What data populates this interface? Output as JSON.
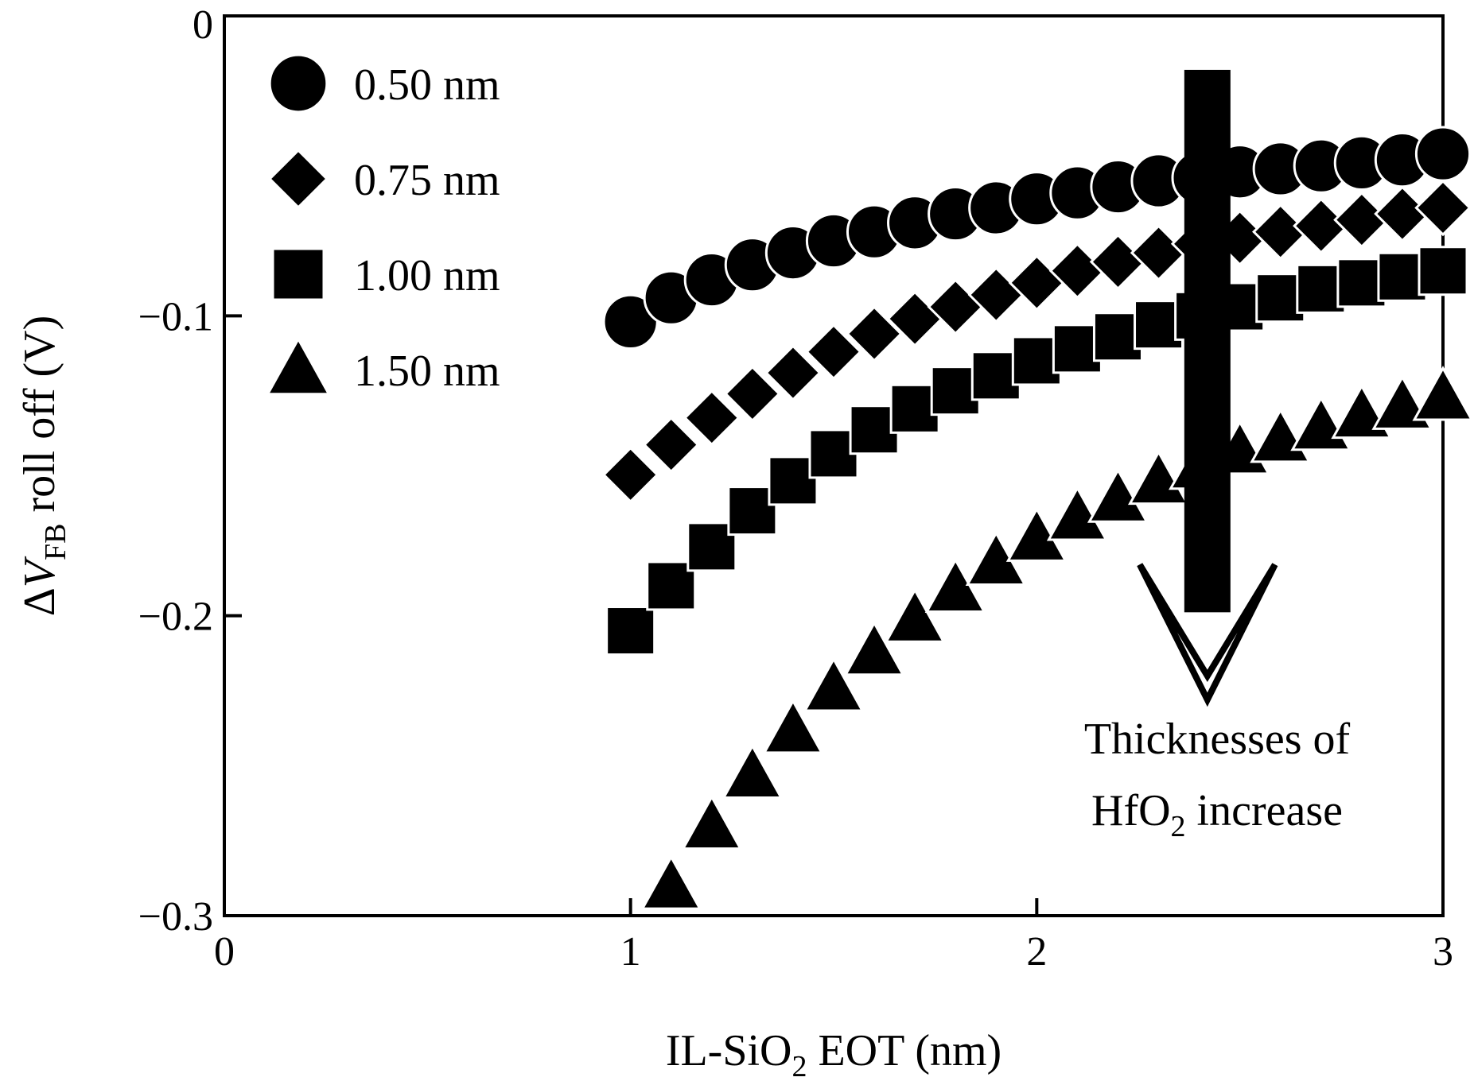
{
  "chart_data": {
    "type": "scatter",
    "xlabel": {
      "pre": "IL-SiO",
      "sub": "2",
      "post": " EOT (nm)"
    },
    "ylabel": {
      "pre": "Δ",
      "italic": "V",
      "sub": "FB",
      "post": " roll off (V)"
    },
    "xlim": [
      0,
      3
    ],
    "ylim": [
      -0.3,
      0
    ],
    "xticks": [
      0,
      1,
      2,
      3
    ],
    "xtick_labels": [
      "0",
      "1",
      "2",
      "3"
    ],
    "yticks": [
      0,
      -0.1,
      -0.2,
      -0.3
    ],
    "ytick_labels": [
      "0",
      "−0.1",
      "−0.2",
      "−0.3"
    ],
    "grid": false,
    "legend_position": "top-left",
    "marker_color": "#000000",
    "x": [
      1.0,
      1.1,
      1.2,
      1.3,
      1.4,
      1.5,
      1.6,
      1.7,
      1.8,
      1.9,
      2.0,
      2.1,
      2.2,
      2.3,
      2.4,
      2.5,
      2.6,
      2.7,
      2.8,
      2.9,
      3.0
    ],
    "series": [
      {
        "name": "0.50 nm",
        "marker": "circle",
        "values": [
          -0.102,
          -0.094,
          -0.088,
          -0.083,
          -0.079,
          -0.075,
          -0.072,
          -0.069,
          -0.066,
          -0.064,
          -0.061,
          -0.059,
          -0.057,
          -0.055,
          -0.054,
          -0.052,
          -0.051,
          -0.05,
          -0.049,
          -0.048,
          -0.046
        ]
      },
      {
        "name": "0.75 nm",
        "marker": "diamond",
        "values": [
          -0.153,
          -0.143,
          -0.134,
          -0.126,
          -0.119,
          -0.112,
          -0.106,
          -0.101,
          -0.097,
          -0.093,
          -0.089,
          -0.085,
          -0.082,
          -0.079,
          -0.076,
          -0.074,
          -0.072,
          -0.07,
          -0.068,
          -0.066,
          -0.064
        ]
      },
      {
        "name": "1.00 nm",
        "marker": "square",
        "values": [
          -0.205,
          -0.19,
          -0.177,
          -0.165,
          -0.155,
          -0.146,
          -0.138,
          -0.131,
          -0.125,
          -0.12,
          -0.115,
          -0.111,
          -0.107,
          -0.103,
          -0.1,
          -0.097,
          -0.094,
          -0.091,
          -0.089,
          -0.087,
          -0.085
        ]
      },
      {
        "name": "1.50 nm",
        "marker": "triangle",
        "values": [
          null,
          -0.29,
          -0.27,
          -0.253,
          -0.238,
          -0.224,
          -0.212,
          -0.201,
          -0.191,
          -0.182,
          -0.174,
          -0.167,
          -0.161,
          -0.155,
          -0.15,
          -0.145,
          -0.141,
          -0.137,
          -0.133,
          -0.13,
          -0.127
        ]
      }
    ],
    "annotation": {
      "line1": "Thicknesses of",
      "line2_pre": "HfO",
      "line2_sub": "2",
      "line2_post": " increase",
      "arrow_x": 2.42,
      "arrow_y_top": -0.018,
      "arrow_y_tip": -0.228
    }
  }
}
